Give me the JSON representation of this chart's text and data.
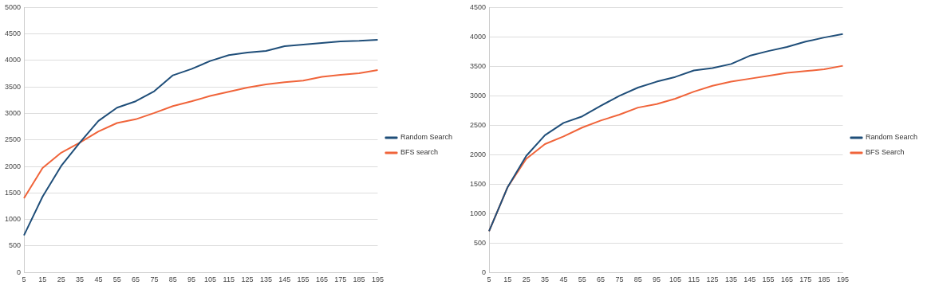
{
  "chart_data": [
    {
      "type": "line",
      "categories": [
        "5",
        "15",
        "25",
        "35",
        "45",
        "55",
        "65",
        "75",
        "85",
        "95",
        "105",
        "115",
        "125",
        "135",
        "145",
        "155",
        "165",
        "175",
        "185",
        "195"
      ],
      "series": [
        {
          "name": "Random Search",
          "color": "#1f4e79",
          "values": [
            700,
            1430,
            2010,
            2450,
            2860,
            3110,
            3230,
            3420,
            3720,
            3840,
            3990,
            4100,
            4150,
            4180,
            4270,
            4300,
            4330,
            4360,
            4370,
            4390
          ]
        },
        {
          "name": "BFS search",
          "color": "#f0643a",
          "values": [
            1400,
            1970,
            2260,
            2450,
            2660,
            2820,
            2890,
            3010,
            3140,
            3230,
            3330,
            3410,
            3490,
            3550,
            3590,
            3620,
            3690,
            3730,
            3760,
            3820
          ]
        }
      ],
      "ylim": [
        0,
        5000
      ],
      "yticks": [
        0,
        500,
        1000,
        1500,
        2000,
        2500,
        3000,
        3500,
        4000,
        4500,
        5000
      ],
      "grid": "y",
      "legend": "right",
      "marker": "none"
    },
    {
      "type": "line",
      "categories": [
        "5",
        "15",
        "25",
        "35",
        "45",
        "55",
        "65",
        "75",
        "85",
        "95",
        "105",
        "115",
        "125",
        "135",
        "145",
        "155",
        "165",
        "175",
        "185",
        "195"
      ],
      "series": [
        {
          "name": "Random Search",
          "color": "#1f4e79",
          "values": [
            700,
            1450,
            1980,
            2330,
            2540,
            2650,
            2830,
            3000,
            3140,
            3240,
            3320,
            3430,
            3470,
            3540,
            3680,
            3760,
            3830,
            3920,
            3990,
            4050
          ]
        },
        {
          "name": "BFS Search",
          "color": "#f0643a",
          "values": [
            700,
            1450,
            1930,
            2180,
            2310,
            2460,
            2580,
            2680,
            2800,
            2860,
            2950,
            3070,
            3170,
            3240,
            3290,
            3340,
            3390,
            3420,
            3450,
            3510
          ]
        }
      ],
      "ylim": [
        0,
        4500
      ],
      "yticks": [
        0,
        500,
        1000,
        1500,
        2000,
        2500,
        3000,
        3500,
        4000,
        4500
      ],
      "grid": "y",
      "legend": "right",
      "marker": "none"
    }
  ]
}
